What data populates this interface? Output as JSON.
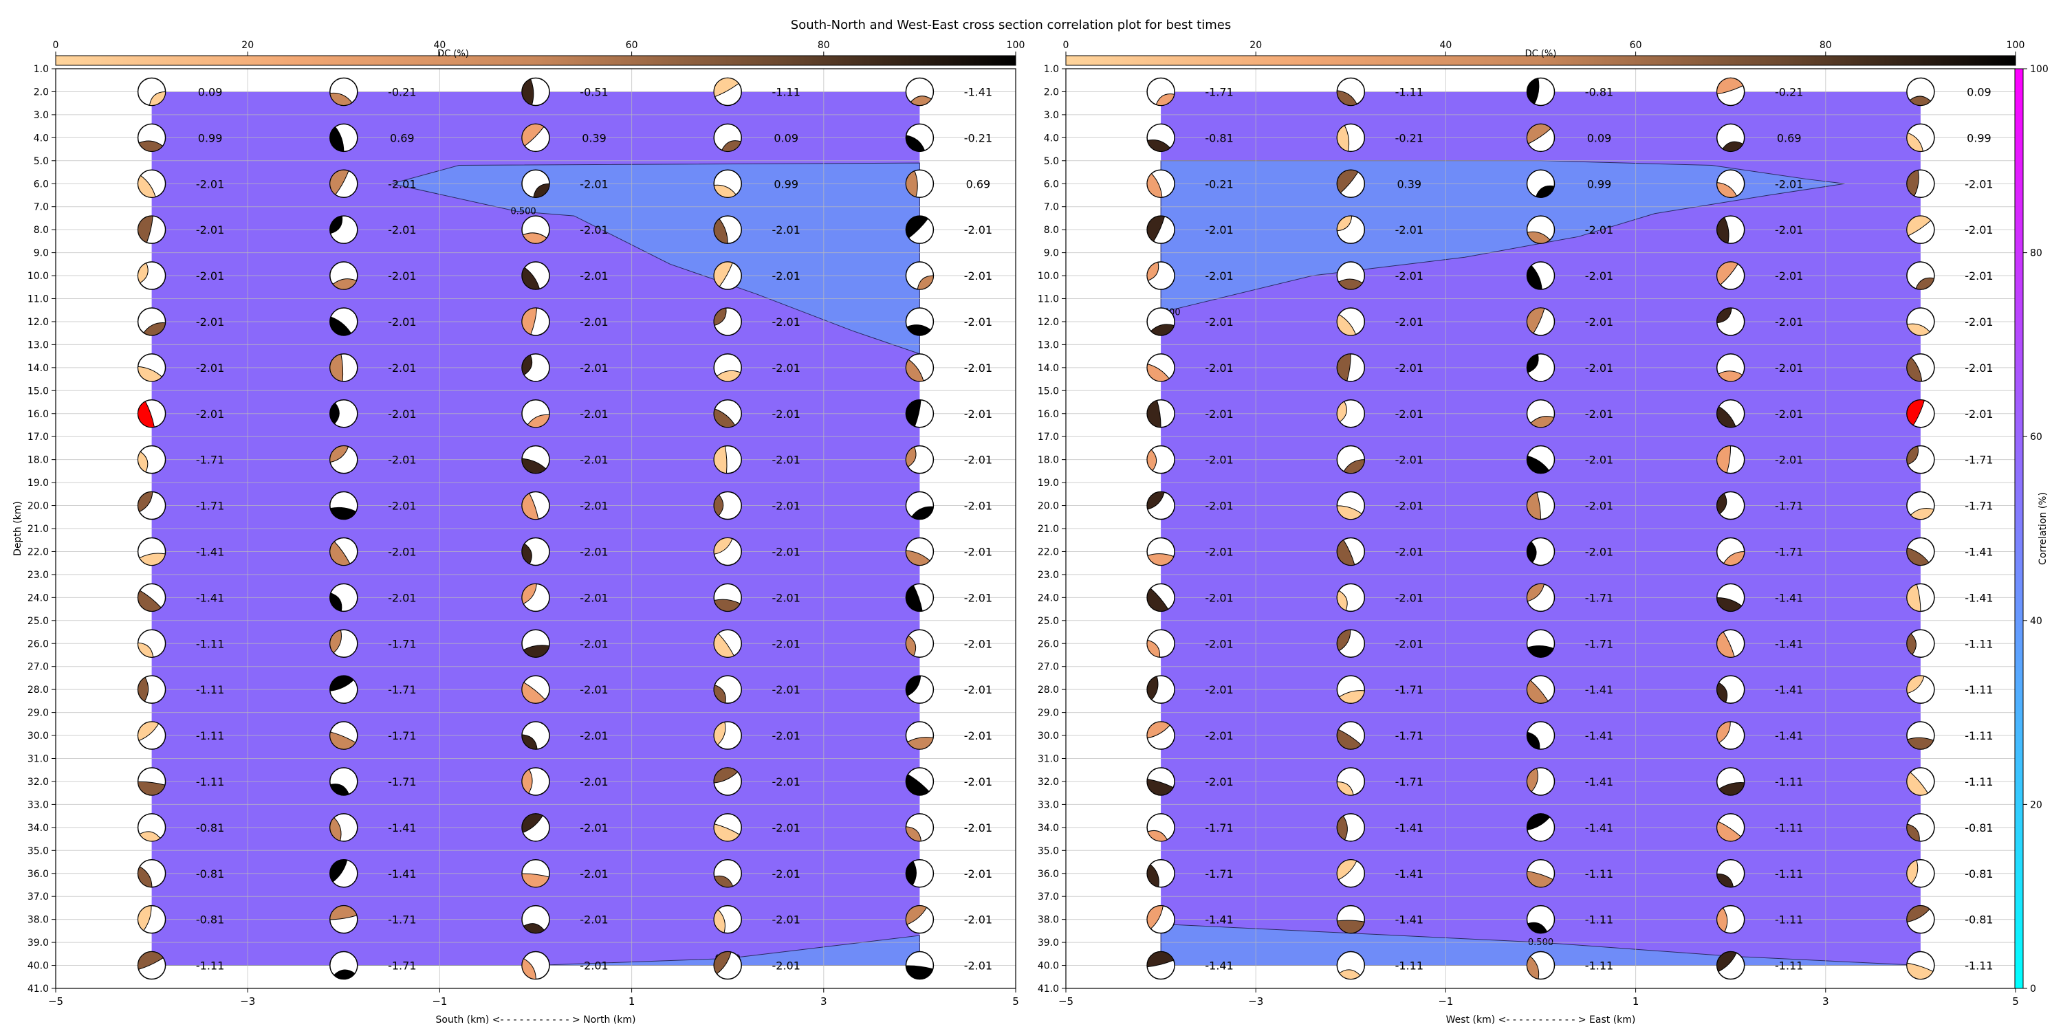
{
  "title": "South-North and West-East cross section correlation plot for best times",
  "dc_colorbar": {
    "label": "DC (%)",
    "ticks": [
      "0",
      "20",
      "40",
      "60",
      "80",
      "100"
    ]
  },
  "corr_colorbar": {
    "label": "Correlation (%)",
    "ticks": [
      "0",
      "20",
      "40",
      "60",
      "80",
      "100"
    ]
  },
  "ylabel": "Depth (km)",
  "panels": [
    {
      "xlabel": "South (km) <- - - - - - - - - - - > North (km)"
    },
    {
      "xlabel": "West (km) <- - - - - - - - - - - > East (km)"
    }
  ],
  "chart_data": [
    {
      "type": "heatmap",
      "title": "South-North and West-East cross section correlation plot for best times",
      "xlabel": "South (km) <- - - - - - - - - - - > North (km)",
      "ylabel": "Depth (km)",
      "xlim": [
        -5,
        5
      ],
      "ylim": [
        41,
        1
      ],
      "x_ticks": [
        -5,
        -3,
        -1,
        1,
        3,
        5
      ],
      "y_ticks": [
        1,
        2,
        3,
        4,
        5,
        6,
        7,
        8,
        9,
        10,
        11,
        12,
        13,
        14,
        15,
        16,
        17,
        18,
        19,
        20,
        21,
        22,
        23,
        24,
        25,
        26,
        27,
        28,
        29,
        30,
        31,
        32,
        33,
        34,
        35,
        36,
        37,
        38,
        39,
        40,
        41
      ],
      "grid": true,
      "x": [
        -4,
        -2,
        0,
        2,
        4
      ],
      "depths": [
        2,
        4,
        6,
        8,
        10,
        12,
        14,
        16,
        18,
        20,
        22,
        24,
        26,
        28,
        30,
        32,
        34,
        36,
        38,
        40
      ],
      "time_labels": [
        [
          "0.09",
          "-0.21",
          "-0.51",
          "-1.11",
          "-1.41"
        ],
        [
          "0.99",
          "0.69",
          "0.39",
          "0.09",
          "-0.21"
        ],
        [
          "-2.01",
          "-2.01",
          "-2.01",
          "0.99",
          "0.69"
        ],
        [
          "-2.01",
          "-2.01",
          "-2.01",
          "-2.01",
          "-2.01"
        ],
        [
          "-2.01",
          "-2.01",
          "-2.01",
          "-2.01",
          "-2.01"
        ],
        [
          "-2.01",
          "-2.01",
          "-2.01",
          "-2.01",
          "-2.01"
        ],
        [
          "-2.01",
          "-2.01",
          "-2.01",
          "-2.01",
          "-2.01"
        ],
        [
          "-2.01",
          "-2.01",
          "-2.01",
          "-2.01",
          "-2.01"
        ],
        [
          "-1.71",
          "-2.01",
          "-2.01",
          "-2.01",
          "-2.01"
        ],
        [
          "-1.71",
          "-2.01",
          "-2.01",
          "-2.01",
          "-2.01"
        ],
        [
          "-1.41",
          "-2.01",
          "-2.01",
          "-2.01",
          "-2.01"
        ],
        [
          "-1.41",
          "-2.01",
          "-2.01",
          "-2.01",
          "-2.01"
        ],
        [
          "-1.11",
          "-1.71",
          "-2.01",
          "-2.01",
          "-2.01"
        ],
        [
          "-1.11",
          "-1.71",
          "-2.01",
          "-2.01",
          "-2.01"
        ],
        [
          "-1.11",
          "-1.71",
          "-2.01",
          "-2.01",
          "-2.01"
        ],
        [
          "-1.11",
          "-1.71",
          "-2.01",
          "-2.01",
          "-2.01"
        ],
        [
          "-0.81",
          "-1.41",
          "-2.01",
          "-2.01",
          "-2.01"
        ],
        [
          "-0.81",
          "-1.41",
          "-2.01",
          "-2.01",
          "-2.01"
        ],
        [
          "-0.81",
          "-1.71",
          "-2.01",
          "-2.01",
          "-2.01"
        ],
        [
          "-1.11",
          "-1.71",
          "-2.01",
          "-2.01",
          "-2.01"
        ]
      ],
      "contour_label": "0.500",
      "contour_upper": [
        [
          -1.5,
          6
        ],
        [
          -0.8,
          5.2
        ],
        [
          4,
          5.1
        ],
        [
          4,
          13.4
        ],
        [
          3.3,
          12.4
        ],
        [
          2.3,
          10.8
        ],
        [
          1.4,
          9.5
        ],
        [
          0.4,
          7.4
        ],
        [
          -0.2,
          7.2
        ]
      ],
      "contour_lower": [
        [
          -3.8,
          40
        ],
        [
          -1,
          40
        ],
        [
          0,
          40
        ],
        [
          2,
          39.7
        ],
        [
          4,
          38.7
        ],
        [
          4,
          40
        ],
        [
          -4,
          40
        ]
      ]
    },
    {
      "type": "heatmap",
      "xlabel": "West (km) <- - - - - - - - - - - > East (km)",
      "ylabel": "Depth (km)",
      "xlim": [
        -5,
        5
      ],
      "ylim": [
        41,
        1
      ],
      "x_ticks": [
        -5,
        -3,
        -1,
        1,
        3,
        5
      ],
      "grid": true,
      "x": [
        -4,
        -2,
        0,
        2,
        4
      ],
      "depths": [
        2,
        4,
        6,
        8,
        10,
        12,
        14,
        16,
        18,
        20,
        22,
        24,
        26,
        28,
        30,
        32,
        34,
        36,
        38,
        40
      ],
      "time_labels": [
        [
          "-1.71",
          "-1.11",
          "-0.81",
          "-0.21",
          "0.09"
        ],
        [
          "-0.81",
          "-0.21",
          "0.09",
          "0.69",
          "0.99"
        ],
        [
          "-0.21",
          "0.39",
          "0.99",
          "-2.01",
          "-2.01"
        ],
        [
          "-2.01",
          "-2.01",
          "-2.01",
          "-2.01",
          "-2.01"
        ],
        [
          "-2.01",
          "-2.01",
          "-2.01",
          "-2.01",
          "-2.01"
        ],
        [
          "-2.01",
          "-2.01",
          "-2.01",
          "-2.01",
          "-2.01"
        ],
        [
          "-2.01",
          "-2.01",
          "-2.01",
          "-2.01",
          "-2.01"
        ],
        [
          "-2.01",
          "-2.01",
          "-2.01",
          "-2.01",
          "-2.01"
        ],
        [
          "-2.01",
          "-2.01",
          "-2.01",
          "-2.01",
          "-1.71"
        ],
        [
          "-2.01",
          "-2.01",
          "-2.01",
          "-1.71",
          "-1.71"
        ],
        [
          "-2.01",
          "-2.01",
          "-2.01",
          "-1.71",
          "-1.41"
        ],
        [
          "-2.01",
          "-2.01",
          "-1.71",
          "-1.41",
          "-1.41"
        ],
        [
          "-2.01",
          "-2.01",
          "-1.71",
          "-1.41",
          "-1.11"
        ],
        [
          "-2.01",
          "-1.71",
          "-1.41",
          "-1.41",
          "-1.11"
        ],
        [
          "-2.01",
          "-1.71",
          "-1.41",
          "-1.41",
          "-1.11"
        ],
        [
          "-2.01",
          "-1.71",
          "-1.41",
          "-1.11",
          "-1.11"
        ],
        [
          "-1.71",
          "-1.41",
          "-1.41",
          "-1.11",
          "-0.81"
        ],
        [
          "-1.71",
          "-1.41",
          "-1.11",
          "-1.11",
          "-0.81"
        ],
        [
          "-1.41",
          "-1.41",
          "-1.11",
          "-1.11",
          "-0.81"
        ],
        [
          "-1.41",
          "-1.11",
          "-1.11",
          "-1.11",
          "-1.11"
        ]
      ],
      "contour_label": "0.500",
      "contour_upper": [
        [
          -4,
          5
        ],
        [
          0,
          5
        ],
        [
          1.8,
          5.2
        ],
        [
          2.8,
          5.8
        ],
        [
          3.2,
          6
        ],
        [
          2.4,
          6.5
        ],
        [
          1.2,
          7.3
        ],
        [
          0.4,
          8.3
        ],
        [
          -0.8,
          9.2
        ],
        [
          -2.4,
          10
        ],
        [
          -3.6,
          11.2
        ],
        [
          -4,
          11.6
        ]
      ],
      "contour_lower": [
        [
          -4,
          40
        ],
        [
          -4,
          38.2
        ],
        [
          0,
          39
        ],
        [
          2,
          39.6
        ],
        [
          4,
          40
        ]
      ]
    }
  ],
  "colors": {
    "background_correlation": "#8a69fa",
    "contour_region": "#6f8cf8",
    "beachball_outline": "#000000",
    "highlight_mechanism": "#ff0000"
  }
}
